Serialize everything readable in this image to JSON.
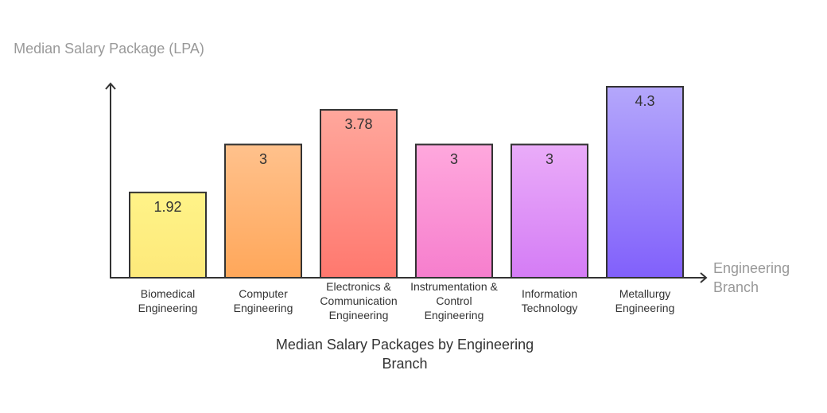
{
  "chart_data": {
    "type": "bar",
    "title": "Median Salary Packages by Engineering Branch",
    "ylabel": "Median Salary Package (LPA)",
    "xlabel": "Engineering Branch",
    "categories": [
      "Biomedical Engineering",
      "Computer Engineering",
      "Electronics & Communication Engineering",
      "Instrumentation & Control Engineering",
      "Information Technology",
      "Metallurgy Engineering"
    ],
    "values": [
      1.92,
      3,
      3.78,
      3,
      3,
      4.3
    ],
    "colors": [
      [
        "#fff388",
        "#fde97a"
      ],
      [
        "#ffc18c",
        "#ffa75a"
      ],
      [
        "#ffa79c",
        "#ff786e"
      ],
      [
        "#ffa8dd",
        "#f67ecd"
      ],
      [
        "#eaacf9",
        "#d47cf5"
      ],
      [
        "#b4a7fb",
        "#8160fb"
      ]
    ],
    "ylim": [
      0,
      4.3
    ]
  }
}
